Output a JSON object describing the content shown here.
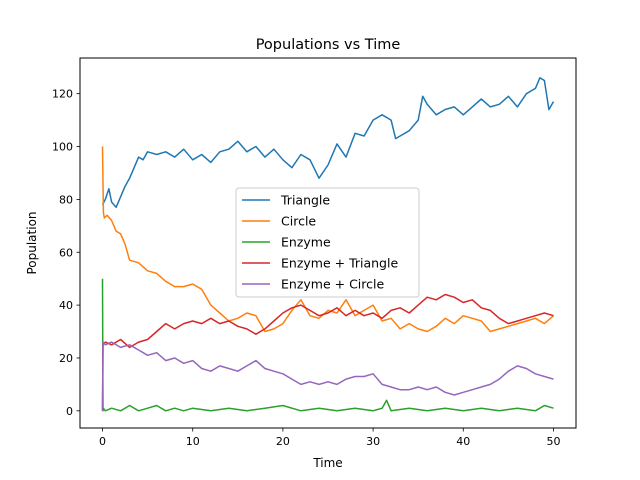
{
  "chart_data": {
    "type": "line",
    "title": "Populations vs Time",
    "xlabel": "Time",
    "ylabel": "Population",
    "xlim": [
      -2.5,
      52.5
    ],
    "ylim": [
      -6.5,
      133.5
    ],
    "xticks": [
      0,
      10,
      20,
      30,
      40,
      50
    ],
    "yticks": [
      0,
      20,
      40,
      60,
      80,
      100,
      120
    ],
    "grid": false,
    "legend_position": "center",
    "series": [
      {
        "name": "Triangle",
        "color": "#1f77b4",
        "x": [
          0,
          0.3,
          0.7,
          1,
          1.5,
          2,
          2.5,
          3,
          3.5,
          4,
          4.5,
          5,
          6,
          7,
          8,
          9,
          10,
          11,
          12,
          13,
          14,
          15,
          16,
          17,
          18,
          19,
          20,
          21,
          22,
          23,
          24,
          25,
          26,
          27,
          28,
          29,
          30,
          31,
          32,
          32.5,
          33,
          34,
          35,
          35.5,
          36,
          37,
          38,
          39,
          40,
          41,
          42,
          43,
          44,
          45,
          46,
          47,
          48,
          48.5,
          49,
          49.5,
          50
        ],
        "y": [
          78,
          80,
          84,
          79,
          77,
          81,
          85,
          88,
          92,
          96,
          95,
          98,
          97,
          98,
          96,
          99,
          95,
          97,
          94,
          98,
          99,
          102,
          98,
          100,
          96,
          99,
          95,
          92,
          97,
          95,
          88,
          93,
          101,
          96,
          105,
          104,
          110,
          112,
          110,
          103,
          104,
          106,
          110,
          119,
          116,
          112,
          114,
          115,
          112,
          115,
          118,
          115,
          116,
          119,
          115,
          120,
          122,
          126,
          125,
          114,
          117
        ]
      },
      {
        "name": "Circle",
        "color": "#ff7f0e",
        "x": [
          0,
          0.1,
          0.2,
          0.5,
          1,
          1.5,
          2,
          2.5,
          3,
          4,
          5,
          6,
          7,
          8,
          9,
          10,
          11,
          12,
          13,
          14,
          15,
          16,
          17,
          18,
          19,
          20,
          21,
          22,
          23,
          24,
          25,
          26,
          27,
          28,
          29,
          30,
          31,
          32,
          33,
          34,
          35,
          36,
          37,
          38,
          39,
          40,
          41,
          42,
          43,
          44,
          45,
          46,
          47,
          48,
          49,
          50
        ],
        "y": [
          100,
          75,
          73,
          74,
          72,
          68,
          67,
          63,
          57,
          56,
          53,
          52,
          49,
          47,
          47,
          48,
          46,
          40,
          37,
          34,
          35,
          37,
          36,
          30,
          31,
          33,
          38,
          42,
          36,
          35,
          38,
          37,
          42,
          36,
          38,
          40,
          34,
          35,
          31,
          33,
          31,
          30,
          32,
          35,
          33,
          36,
          35,
          34,
          30,
          31,
          32,
          33,
          34,
          35,
          33,
          36
        ]
      },
      {
        "name": "Enzyme",
        "color": "#2ca02c",
        "x": [
          0,
          0.05,
          0.1,
          0.3,
          1,
          2,
          3,
          4,
          5,
          6,
          7,
          8,
          9,
          10,
          12,
          14,
          16,
          18,
          20,
          22,
          24,
          26,
          28,
          30,
          31,
          31.5,
          32,
          34,
          36,
          38,
          40,
          42,
          44,
          46,
          48,
          49,
          50
        ],
        "y": [
          50,
          0,
          1,
          0,
          1,
          0,
          2,
          0,
          1,
          2,
          0,
          1,
          0,
          1,
          0,
          1,
          0,
          1,
          2,
          0,
          1,
          0,
          1,
          0,
          1,
          4,
          0,
          1,
          0,
          1,
          0,
          1,
          0,
          1,
          0,
          2,
          1
        ]
      },
      {
        "name": "Enzyme + Triangle",
        "color": "#d62728",
        "x": [
          0,
          0.05,
          0.3,
          1,
          2,
          3,
          4,
          5,
          6,
          7,
          8,
          9,
          10,
          11,
          12,
          13,
          14,
          15,
          16,
          17,
          18,
          19,
          20,
          21,
          22,
          23,
          24,
          25,
          26,
          27,
          28,
          29,
          30,
          31,
          32,
          33,
          34,
          35,
          36,
          37,
          38,
          39,
          40,
          41,
          42,
          43,
          44,
          45,
          46,
          47,
          48,
          49,
          50
        ],
        "y": [
          0,
          25,
          26,
          25,
          27,
          24,
          26,
          27,
          30,
          33,
          31,
          33,
          34,
          33,
          35,
          33,
          34,
          32,
          31,
          29,
          31,
          34,
          37,
          39,
          40,
          38,
          36,
          37,
          39,
          36,
          38,
          36,
          37,
          35,
          38,
          39,
          37,
          40,
          43,
          42,
          44,
          43,
          41,
          42,
          39,
          38,
          35,
          33,
          34,
          35,
          36,
          37,
          36
        ]
      },
      {
        "name": "Enzyme + Circle",
        "color": "#9467bd",
        "x": [
          0,
          0.05,
          0.3,
          1,
          2,
          3,
          4,
          5,
          6,
          7,
          8,
          9,
          10,
          11,
          12,
          13,
          14,
          15,
          16,
          17,
          18,
          19,
          20,
          21,
          22,
          23,
          24,
          25,
          26,
          27,
          28,
          29,
          30,
          31,
          32,
          33,
          34,
          35,
          36,
          37,
          38,
          39,
          40,
          41,
          42,
          43,
          44,
          45,
          46,
          47,
          48,
          49,
          50
        ],
        "y": [
          0,
          26,
          25,
          26,
          24,
          25,
          23,
          21,
          22,
          19,
          20,
          18,
          19,
          16,
          15,
          17,
          16,
          15,
          17,
          19,
          16,
          15,
          14,
          12,
          10,
          11,
          10,
          11,
          10,
          12,
          13,
          13,
          14,
          10,
          9,
          8,
          8,
          9,
          8,
          9,
          7,
          6,
          7,
          8,
          9,
          10,
          12,
          15,
          17,
          16,
          14,
          13,
          12
        ]
      }
    ]
  }
}
